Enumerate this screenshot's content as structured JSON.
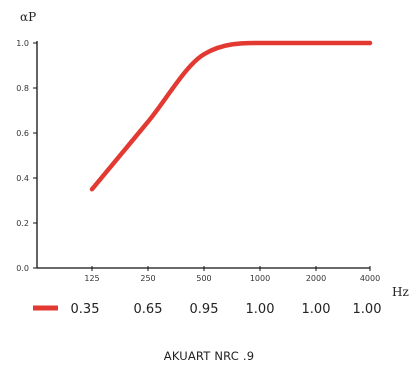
{
  "chart_data": {
    "type": "line",
    "ylabel": "αP",
    "xlabel": "Hz",
    "categories": [
      "125",
      "250",
      "500",
      "1000",
      "2000",
      "4000"
    ],
    "yticks": [
      "0.0",
      "0.2",
      "0.4",
      "0.6",
      "0.8",
      "1.0"
    ],
    "ylim": [
      0,
      1.0
    ],
    "series": [
      {
        "values": [
          0.35,
          0.65,
          0.95,
          1.0,
          1.0,
          1.0
        ]
      }
    ],
    "legend_values": [
      "0.35",
      "0.65",
      "0.95",
      "1.00",
      "1.00",
      "1.00"
    ],
    "caption": "AKUART NRC .9",
    "line_color": "#e23a33",
    "grid": false
  }
}
